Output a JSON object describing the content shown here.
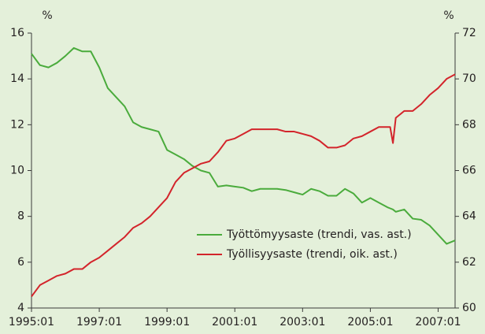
{
  "chart_data": {
    "type": "line",
    "y_label": "%",
    "y2_label": "%",
    "x": [
      "1995:01",
      "1995:04",
      "1995:07",
      "1995:10",
      "1996:01",
      "1996:04",
      "1996:07",
      "1996:10",
      "1997:01",
      "1997:04",
      "1997:07",
      "1997:10",
      "1998:01",
      "1998:04",
      "1998:07",
      "1998:10",
      "1999:01",
      "1999:04",
      "1999:07",
      "1999:10",
      "2000:01",
      "2000:04",
      "2000:07",
      "2000:10",
      "2001:01",
      "2001:04",
      "2001:07",
      "2001:10",
      "2002:01",
      "2002:04",
      "2002:07",
      "2002:10",
      "2003:01",
      "2003:04",
      "2003:07",
      "2003:10",
      "2004:01",
      "2004:04",
      "2004:07",
      "2004:10",
      "2005:01",
      "2005:04",
      "2005:07",
      "2005:08",
      "2005:09",
      "2005:10",
      "2006:01",
      "2006:04",
      "2006:07",
      "2006:10",
      "2007:01",
      "2007:04",
      "2007:07"
    ],
    "series": [
      {
        "name": "Työttömyysaste (trendi, vas. ast.)",
        "color": "#4aab3c",
        "values": [
          15.1,
          14.6,
          14.5,
          14.7,
          15.0,
          15.35,
          15.2,
          15.2,
          14.5,
          13.6,
          13.2,
          12.8,
          12.1,
          11.9,
          11.8,
          11.7,
          10.9,
          10.7,
          10.5,
          10.2,
          10.0,
          9.9,
          9.3,
          9.35,
          9.3,
          9.25,
          9.1,
          9.2,
          9.2,
          9.2,
          9.15,
          9.05,
          8.95,
          9.2,
          9.1,
          8.9,
          8.9,
          9.2,
          9.0,
          8.6,
          8.8,
          8.6,
          8.4,
          8.35,
          8.3,
          8.2,
          8.3,
          7.9,
          7.85,
          7.6,
          7.2,
          6.8,
          6.95
        ]
      },
      {
        "name": "Työllisyysaste (trendi, oik. ast.)",
        "color": "#d3242b",
        "axis": "y2",
        "values": [
          60.5,
          61.0,
          61.2,
          61.4,
          61.5,
          61.7,
          61.7,
          62.0,
          62.2,
          62.5,
          62.8,
          63.1,
          63.5,
          63.7,
          64.0,
          64.4,
          64.8,
          65.5,
          65.9,
          66.1,
          66.3,
          66.4,
          66.8,
          67.3,
          67.4,
          67.6,
          67.8,
          67.8,
          67.8,
          67.8,
          67.7,
          67.7,
          67.6,
          67.5,
          67.3,
          67.0,
          67.0,
          67.1,
          67.4,
          67.5,
          67.7,
          67.9,
          67.9,
          67.9,
          67.2,
          68.3,
          68.6,
          68.6,
          68.9,
          69.3,
          69.6,
          70.0,
          70.2
        ]
      }
    ],
    "xlim": [
      "1995:01",
      "2007:07"
    ],
    "xticks": [
      "1995:01",
      "1997:01",
      "1999:01",
      "2001:01",
      "2003:01",
      "2005:01",
      "2007:01"
    ],
    "ylim": [
      4,
      16
    ],
    "yticks": [
      4,
      6,
      8,
      10,
      12,
      14,
      16
    ],
    "y2lim": [
      60,
      72
    ],
    "y2ticks": [
      60,
      62,
      64,
      66,
      68,
      70,
      72
    ],
    "legend": "lower right"
  }
}
